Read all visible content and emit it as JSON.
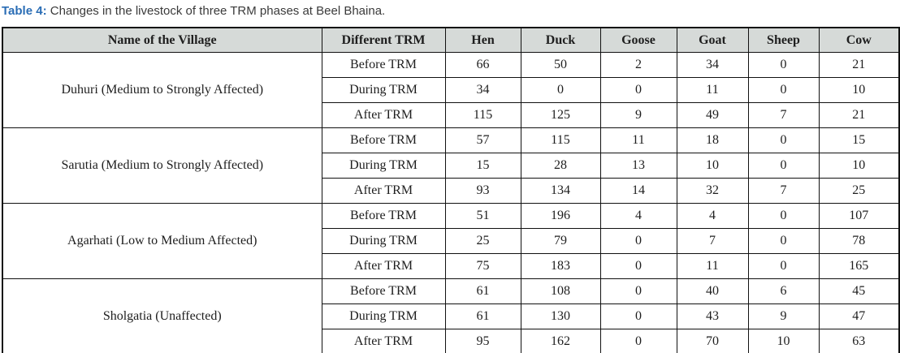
{
  "title": {
    "label": "Table 4:",
    "text": "Changes in the livestock of three TRM phases at Beel Bhaina."
  },
  "colors": {
    "title_accent": "#2a6db5",
    "header_bg": "#d6dad8",
    "border": "#111111",
    "text": "#1e1e1e"
  },
  "table": {
    "columns": [
      "Name of the Village",
      "Different TRM",
      "Hen",
      "Duck",
      "Goose",
      "Goat",
      "Sheep",
      "Cow"
    ],
    "groups": [
      {
        "village": "Duhuri (Medium to Strongly Affected)",
        "rows": [
          {
            "phase": "Before TRM",
            "values": [
              66,
              50,
              2,
              34,
              0,
              21
            ]
          },
          {
            "phase": "During TRM",
            "values": [
              34,
              0,
              0,
              11,
              0,
              10
            ]
          },
          {
            "phase": "After TRM",
            "values": [
              115,
              125,
              9,
              49,
              7,
              21
            ]
          }
        ]
      },
      {
        "village": "Sarutia (Medium to Strongly Affected)",
        "rows": [
          {
            "phase": "Before TRM",
            "values": [
              57,
              115,
              11,
              18,
              0,
              15
            ]
          },
          {
            "phase": "During TRM",
            "values": [
              15,
              28,
              13,
              10,
              0,
              10
            ]
          },
          {
            "phase": "After TRM",
            "values": [
              93,
              134,
              14,
              32,
              7,
              25
            ]
          }
        ]
      },
      {
        "village": "Agarhati (Low to Medium Affected)",
        "rows": [
          {
            "phase": "Before TRM",
            "values": [
              51,
              196,
              4,
              4,
              0,
              107
            ]
          },
          {
            "phase": "During TRM",
            "values": [
              25,
              79,
              0,
              7,
              0,
              78
            ]
          },
          {
            "phase": "After TRM",
            "values": [
              75,
              183,
              0,
              11,
              0,
              165
            ]
          }
        ]
      },
      {
        "village": "Sholgatia (Unaffected)",
        "rows": [
          {
            "phase": "Before TRM",
            "values": [
              61,
              108,
              0,
              40,
              6,
              45
            ]
          },
          {
            "phase": "During TRM",
            "values": [
              61,
              130,
              0,
              43,
              9,
              47
            ]
          },
          {
            "phase": "After TRM",
            "values": [
              95,
              162,
              0,
              70,
              10,
              63
            ]
          }
        ]
      }
    ]
  }
}
